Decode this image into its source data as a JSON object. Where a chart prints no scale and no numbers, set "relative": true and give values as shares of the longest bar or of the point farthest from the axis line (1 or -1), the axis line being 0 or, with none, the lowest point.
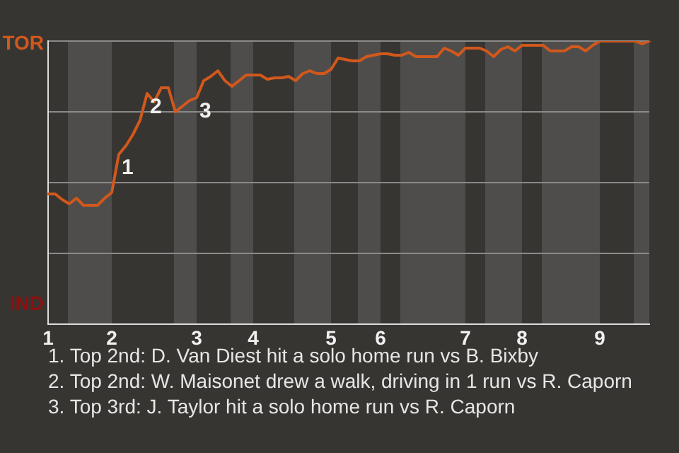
{
  "chart_data": {
    "type": "line",
    "relative": true,
    "categories": [
      "1",
      null,
      null,
      null,
      null,
      null,
      null,
      null,
      null,
      "2",
      null,
      null,
      null,
      null,
      null,
      null,
      null,
      null,
      null,
      null,
      null,
      "3",
      null,
      null,
      null,
      null,
      null,
      null,
      null,
      "4",
      null,
      null,
      null,
      null,
      null,
      null,
      null,
      null,
      null,
      null,
      "5",
      null,
      null,
      null,
      null,
      null,
      null,
      "6",
      null,
      null,
      null,
      null,
      null,
      null,
      null,
      null,
      null,
      null,
      null,
      "7",
      null,
      null,
      null,
      null,
      null,
      null,
      null,
      "8",
      null,
      null,
      null,
      null,
      null,
      null,
      null,
      null,
      null,
      null,
      "9",
      null,
      null,
      null,
      null,
      null,
      null,
      null
    ],
    "series": [
      {
        "color": "#d2581c",
        "values": [
          0.46,
          0.46,
          0.44,
          0.425,
          0.445,
          0.42,
          0.42,
          0.42,
          0.445,
          0.465,
          0.6,
          0.63,
          0.67,
          0.72,
          0.815,
          0.785,
          0.835,
          0.835,
          0.75,
          0.77,
          0.79,
          0.8,
          0.86,
          0.875,
          0.895,
          0.86,
          0.84,
          0.86,
          0.88,
          0.88,
          0.88,
          0.865,
          0.87,
          0.87,
          0.875,
          0.86,
          0.885,
          0.895,
          0.885,
          0.885,
          0.9,
          0.94,
          0.935,
          0.93,
          0.93,
          0.945,
          0.95,
          0.955,
          0.955,
          0.95,
          0.95,
          0.96,
          0.945,
          0.945,
          0.945,
          0.945,
          0.975,
          0.965,
          0.95,
          0.975,
          0.975,
          0.975,
          0.965,
          0.945,
          0.97,
          0.98,
          0.965,
          0.985,
          0.985,
          0.985,
          0.985,
          0.965,
          0.965,
          0.965,
          0.98,
          0.98,
          0.965,
          0.985,
          1,
          1,
          1,
          1,
          1,
          1,
          0.99,
          1
        ]
      }
    ],
    "grid": "y",
    "annotations": [
      "TOR",
      "IND",
      {
        "text": "1",
        "y": 0.6
      },
      {
        "text": "2",
        "y": 0.815
      },
      {
        "text": "3",
        "y": 0.8
      },
      "1. Top 2nd: D. Van Diest hit a solo home run vs B. Bixby",
      "2. Top 2nd: W. Maisonet drew a walk, driving in 1 run vs R. Caporn",
      "3. Top 3rd: J. Taylor hit a solo home run vs R. Caporn"
    ]
  }
}
